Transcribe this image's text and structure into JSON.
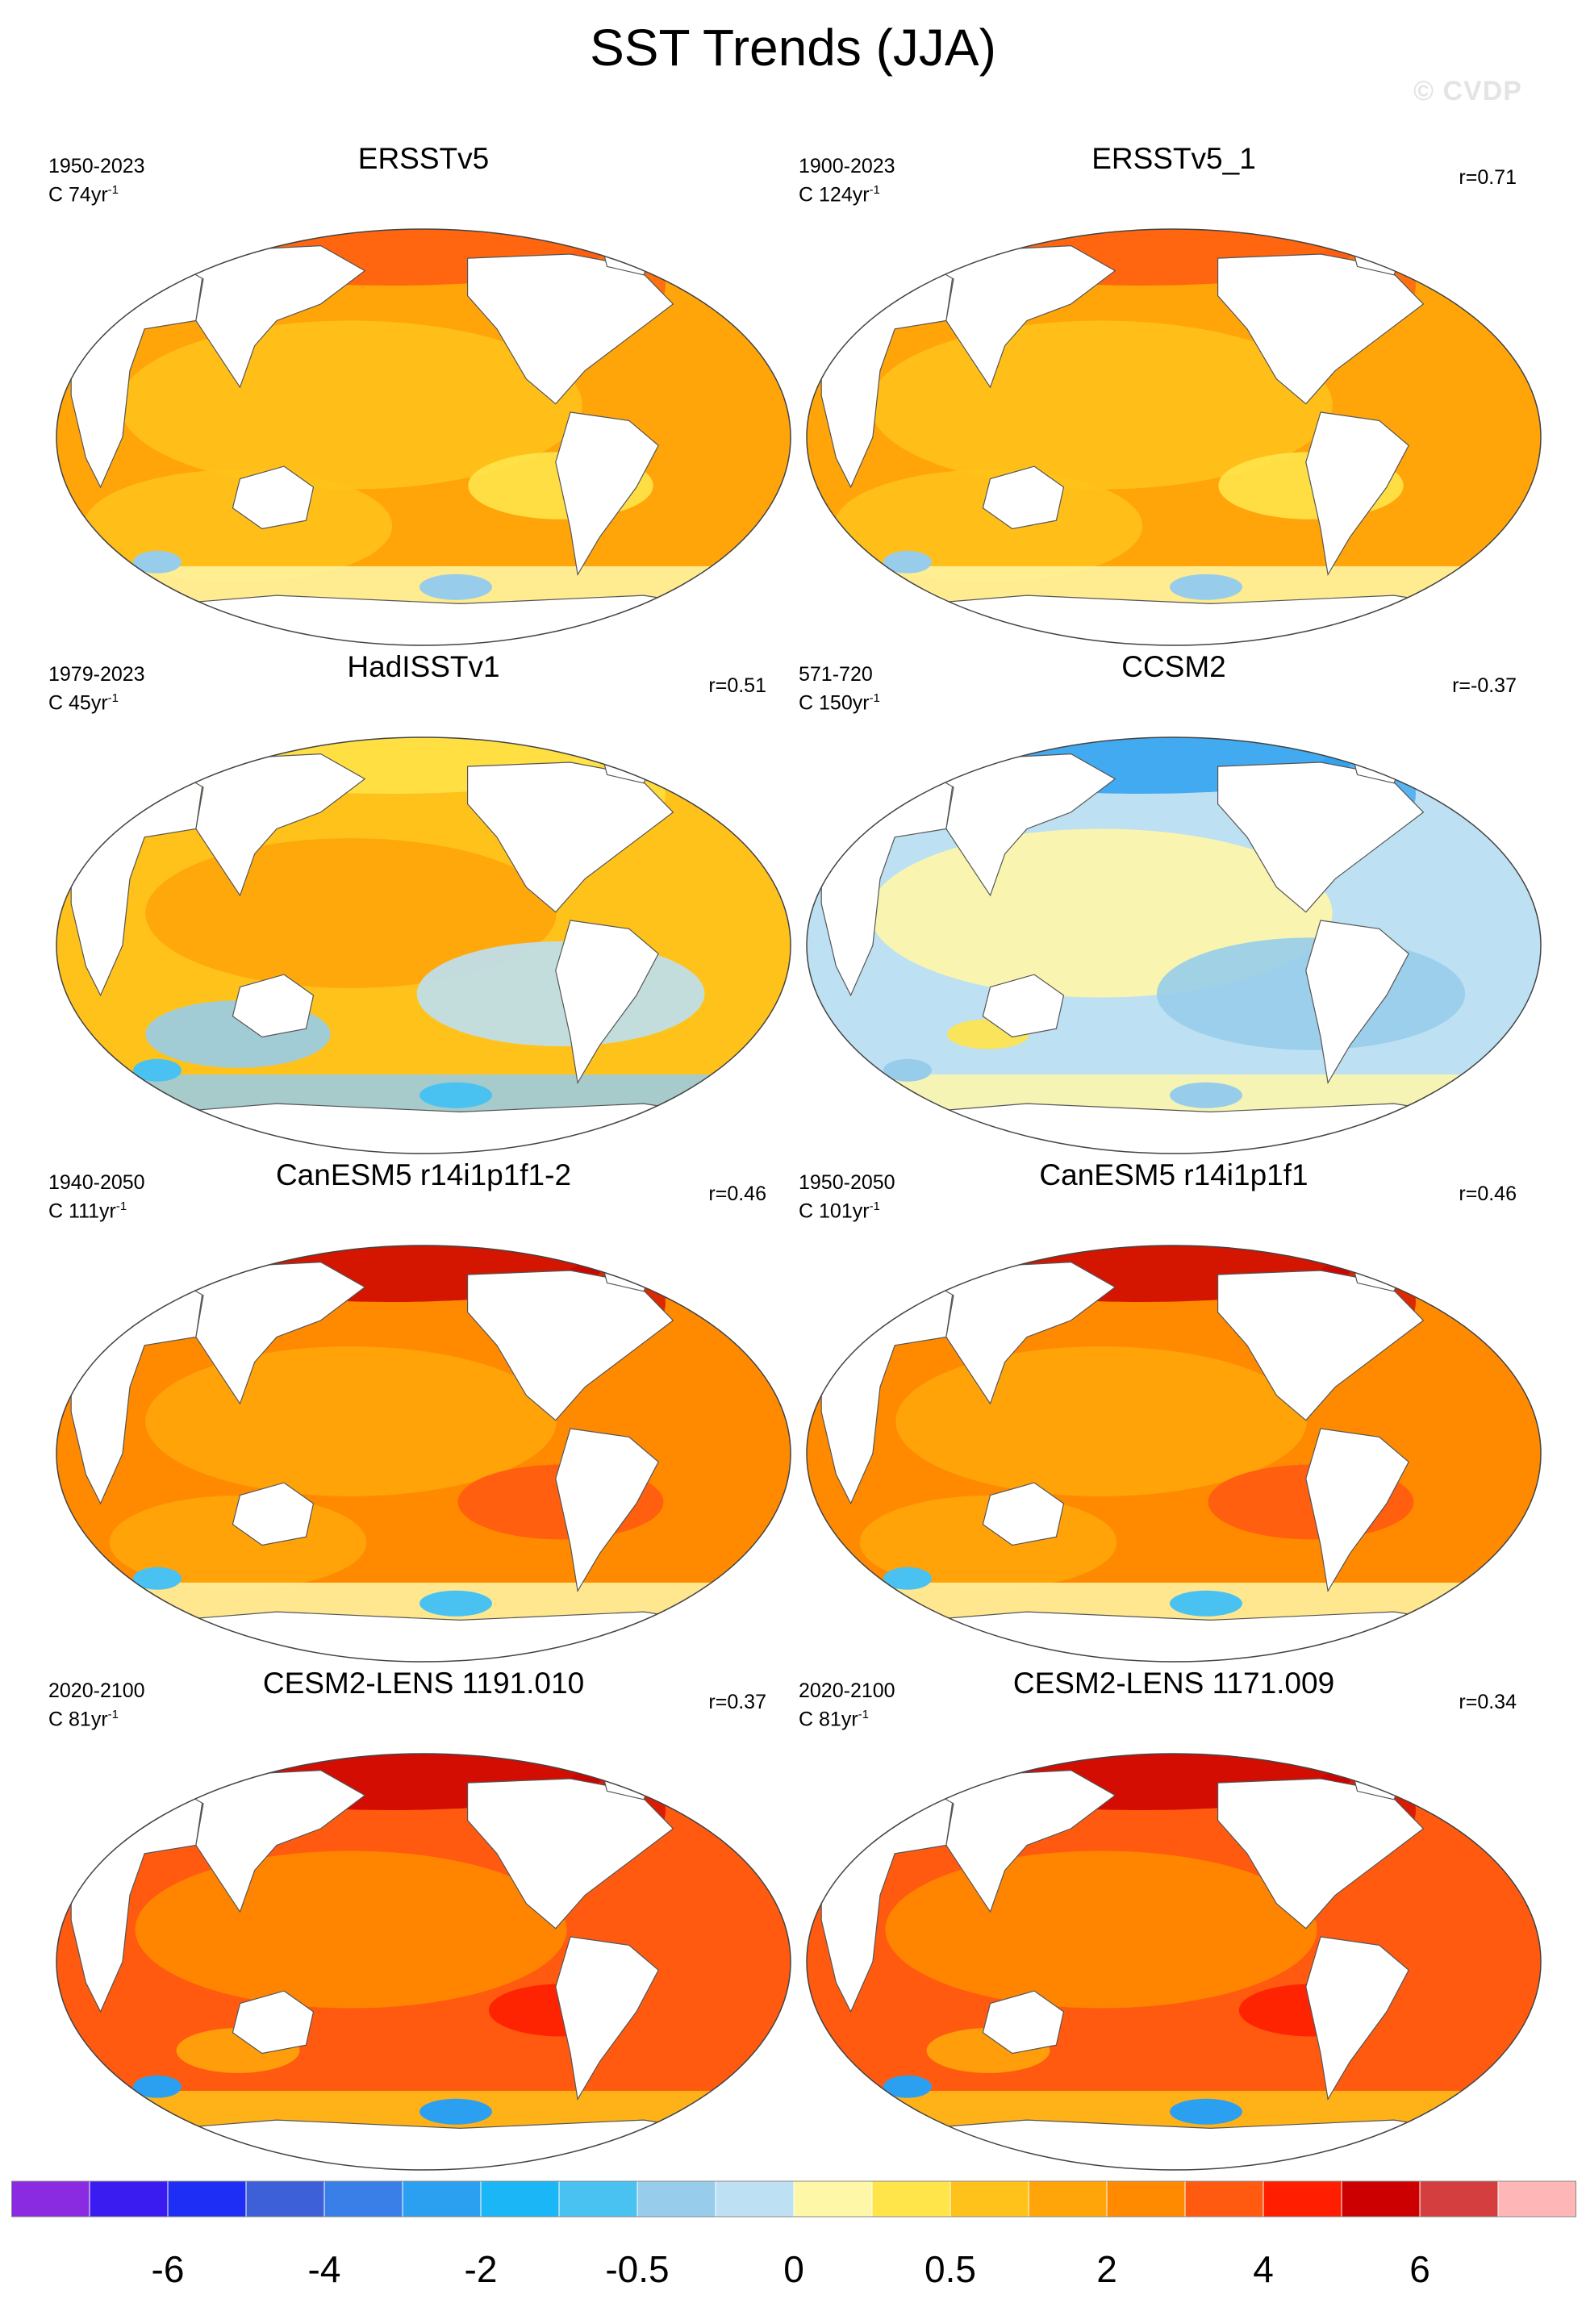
{
  "title": "SST Trends (JJA)",
  "watermark": "© CVDP",
  "chart_data": {
    "type": "map-panels",
    "variable": "Sea surface temperature trend, June-July-August",
    "panels": [
      {
        "title": "ERSSTv5",
        "period": "1950-2023",
        "units_prefix": "C",
        "units_value": "74yr",
        "units_exp": "-1",
        "r": "",
        "theme": "warm"
      },
      {
        "title": "ERSSTv5_1",
        "period": "1900-2023",
        "units_prefix": "C",
        "units_value": "124yr",
        "units_exp": "-1",
        "r": "r=0.71",
        "theme": "warm"
      },
      {
        "title": "HadISSTv1",
        "period": "1979-2023",
        "units_prefix": "C",
        "units_value": "45yr",
        "units_exp": "-1",
        "r": "r=0.51",
        "theme": "mixed"
      },
      {
        "title": "CCSM2",
        "period": "571-720",
        "units_prefix": "C",
        "units_value": "150yr",
        "units_exp": "-1",
        "r": "r=-0.37",
        "theme": "cool"
      },
      {
        "title": "CanESM5 r14i1p1f1-2",
        "period": "1940-2050",
        "units_prefix": "C",
        "units_value": "111yr",
        "units_exp": "-1",
        "r": "r=0.46",
        "theme": "hot"
      },
      {
        "title": "CanESM5 r14i1p1f1",
        "period": "1950-2050",
        "units_prefix": "C",
        "units_value": "101yr",
        "units_exp": "-1",
        "r": "r=0.46",
        "theme": "hot"
      },
      {
        "title": "CESM2-LENS 1191.010",
        "period": "2020-2100",
        "units_prefix": "C",
        "units_value": "81yr",
        "units_exp": "-1",
        "r": "r=0.37",
        "theme": "hotter"
      },
      {
        "title": "CESM2-LENS 1171.009",
        "period": "2020-2100",
        "units_prefix": "C",
        "units_value": "81yr",
        "units_exp": "-1",
        "r": "r=0.34",
        "theme": "hotter"
      }
    ],
    "colorbar": {
      "colors": [
        "#8a2be2",
        "#3a1bf0",
        "#1e2ef5",
        "#3d5fd8",
        "#3a7fe8",
        "#2ca0f0",
        "#1ab6f5",
        "#49c2f2",
        "#97cdea",
        "#bde0f3",
        "#fff7a8",
        "#ffe44a",
        "#ffc21a",
        "#ffa50a",
        "#ff8a00",
        "#ff5a10",
        "#ff1e00",
        "#cc0000",
        "#d43e3e",
        "#ffb6b6"
      ],
      "tick_labels": [
        {
          "label": "-6",
          "box": 2
        },
        {
          "label": "-4",
          "box": 4
        },
        {
          "label": "-2",
          "box": 6
        },
        {
          "label": "-0.5",
          "box": 8
        },
        {
          "label": "0",
          "box": 10
        },
        {
          "label": "0.5",
          "box": 12
        },
        {
          "label": "2",
          "box": 14
        },
        {
          "label": "4",
          "box": 16
        },
        {
          "label": "6",
          "box": 18
        }
      ]
    }
  }
}
